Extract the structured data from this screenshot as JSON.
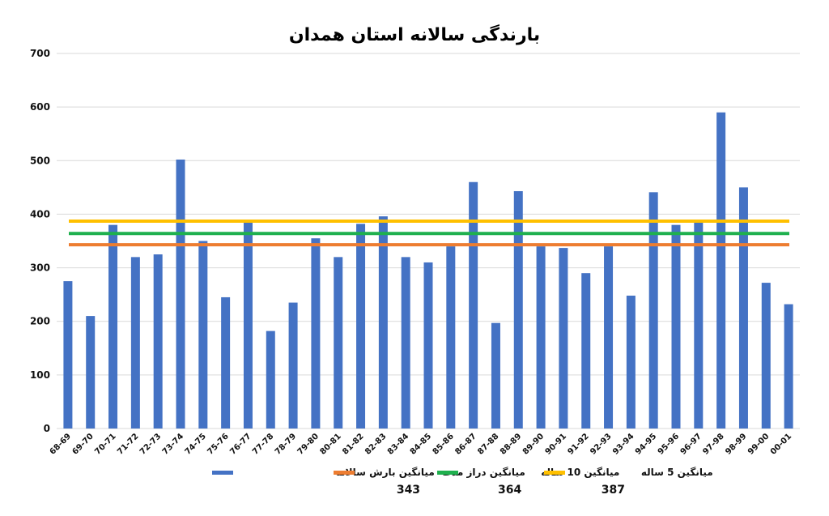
{
  "chart_data": {
    "type": "bar",
    "title": "بارندگی سالانه استان همدان",
    "ylim": [
      0,
      700
    ],
    "yticks": [
      0,
      100,
      200,
      300,
      400,
      500,
      600,
      700
    ],
    "grid": true,
    "legend_position": "bottom",
    "categories": [
      "68-69",
      "69-70",
      "70-71",
      "71-72",
      "72-73",
      "73-74",
      "74-75",
      "75-76",
      "76-77",
      "77-78",
      "78-79",
      "79-80",
      "80-81",
      "81-82",
      "82-83",
      "83-84",
      "84-85",
      "85-86",
      "86-87",
      "87-88",
      "88-89",
      "89-90",
      "90-91",
      "91-92",
      "92-93",
      "93-94",
      "94-95",
      "95-96",
      "96-97",
      "97-98",
      "98-99",
      "99-00",
      "00-01"
    ],
    "series": [
      {
        "name": "میانگین بارش سالانه",
        "color": "#4472c4",
        "values": [
          275,
          210,
          380,
          320,
          325,
          502,
          350,
          245,
          385,
          182,
          235,
          355,
          320,
          382,
          396,
          320,
          310,
          340,
          460,
          197,
          443,
          340,
          337,
          290,
          340,
          248,
          441,
          380,
          385,
          590,
          450,
          272,
          232
        ]
      }
    ],
    "reference_lines": [
      {
        "name": "میانگین دراز مدت",
        "value": 343,
        "value_label": "343",
        "color": "#ed7d31"
      },
      {
        "name": "میانگین 10 ساله",
        "value": 364,
        "value_label": "364",
        "color": "#1fb04e"
      },
      {
        "name": "میانگین 5 ساله",
        "value": 387,
        "value_label": "387",
        "color": "#ffc000"
      }
    ]
  }
}
